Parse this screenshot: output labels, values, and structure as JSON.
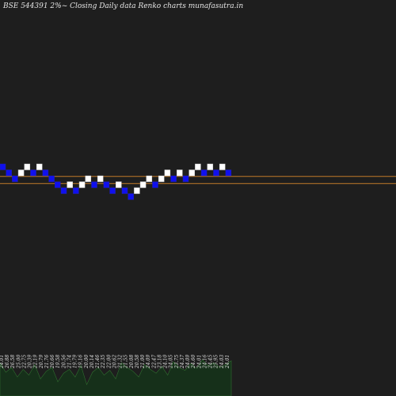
{
  "chart_data": {
    "type": "renko",
    "title": "BSE 544391 2%~ Closing Daily data Renko charts munafasutra.in",
    "colors": {
      "background": "#1e1e1e",
      "up_brick": "#ffffff",
      "down_brick": "#1010ee",
      "brick_border": "#2222aa",
      "reference_line": "#c07a28",
      "volume_fill": "#16301a",
      "volume_line": "#2f6f2f"
    },
    "bricks": [
      {
        "dir": "down",
        "level": 0
      },
      {
        "dir": "down",
        "level": -1
      },
      {
        "dir": "down",
        "level": -2
      },
      {
        "dir": "up",
        "level": -1
      },
      {
        "dir": "up",
        "level": 0
      },
      {
        "dir": "down",
        "level": -1
      },
      {
        "dir": "up",
        "level": 0
      },
      {
        "dir": "down",
        "level": -1
      },
      {
        "dir": "down",
        "level": -2
      },
      {
        "dir": "down",
        "level": -3
      },
      {
        "dir": "down",
        "level": -4
      },
      {
        "dir": "up",
        "level": -3
      },
      {
        "dir": "down",
        "level": -4
      },
      {
        "dir": "up",
        "level": -3
      },
      {
        "dir": "up",
        "level": -2
      },
      {
        "dir": "down",
        "level": -3
      },
      {
        "dir": "up",
        "level": -2
      },
      {
        "dir": "down",
        "level": -3
      },
      {
        "dir": "down",
        "level": -4
      },
      {
        "dir": "up",
        "level": -3
      },
      {
        "dir": "down",
        "level": -4
      },
      {
        "dir": "down",
        "level": -5
      },
      {
        "dir": "up",
        "level": -4
      },
      {
        "dir": "up",
        "level": -3
      },
      {
        "dir": "up",
        "level": -2
      },
      {
        "dir": "down",
        "level": -3
      },
      {
        "dir": "up",
        "level": -2
      },
      {
        "dir": "up",
        "level": -1
      },
      {
        "dir": "down",
        "level": -2
      },
      {
        "dir": "up",
        "level": -1
      },
      {
        "dir": "down",
        "level": -2
      },
      {
        "dir": "up",
        "level": -1
      },
      {
        "dir": "up",
        "level": 0
      },
      {
        "dir": "down",
        "level": -1
      },
      {
        "dir": "up",
        "level": 0
      },
      {
        "dir": "down",
        "level": -1
      },
      {
        "dir": "up",
        "level": 0
      },
      {
        "dir": "down",
        "level": -1
      }
    ],
    "reference_levels": [
      -1.1,
      -2.3
    ],
    "price_labels": [
      "24.01",
      "26.88",
      "26.58",
      "25.00",
      "22.75",
      "20.39",
      "22.19",
      "20.79",
      "21.76",
      "20.66",
      "19.58",
      "20.56",
      "21.74",
      "19.79",
      "19.16",
      "20.00",
      "20.14",
      "21.46",
      "22.35",
      "22.00",
      "20.62",
      "21.32",
      "21.55",
      "20.08",
      "20.58",
      "21.00",
      "24.09",
      "22.47",
      "23.18",
      "24.10",
      "24.05",
      "23.75",
      "24.37",
      "24.09",
      "24.60",
      "24.01",
      "24.16",
      "24.45",
      "25.95",
      "24.03",
      "24.01"
    ],
    "volume": [
      0.35,
      0.25,
      0.3,
      0.2,
      0.28,
      0.22,
      0.33,
      0.18,
      0.26,
      0.3,
      0.15,
      0.24,
      0.28,
      0.2,
      0.32,
      0.12,
      0.25,
      0.3,
      0.22,
      0.27,
      0.18,
      0.35,
      0.3,
      0.26,
      0.2,
      0.33,
      0.28,
      0.24,
      0.31,
      0.22,
      0.36,
      0.3,
      0.27,
      0.34,
      0.29,
      0.38,
      0.32,
      0.35,
      0.3,
      0.33,
      0.37
    ]
  }
}
